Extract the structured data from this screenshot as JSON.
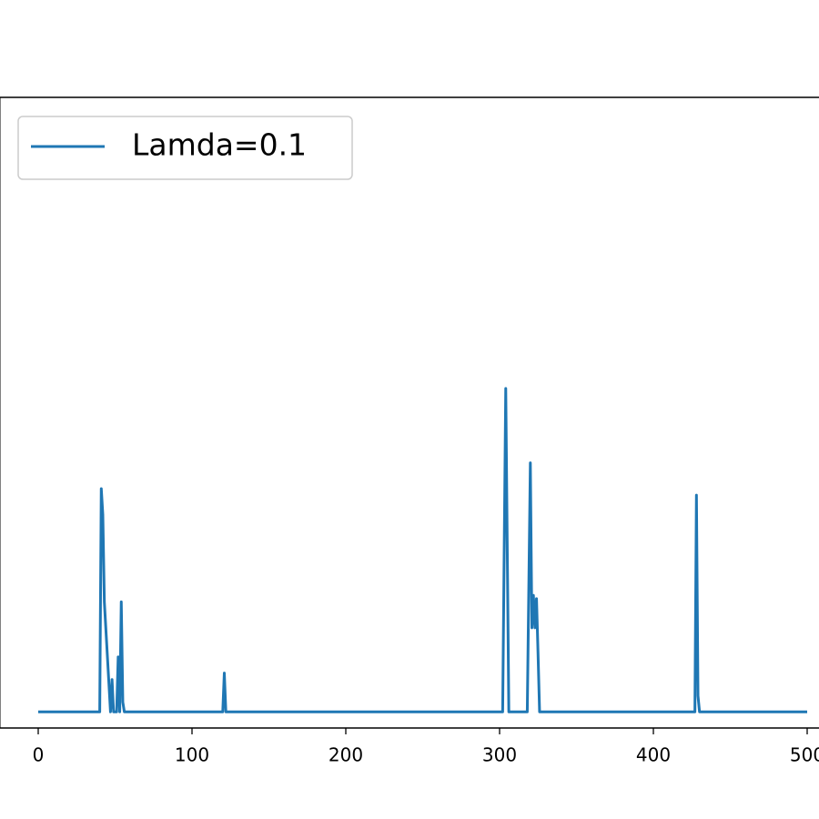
{
  "chart_data": {
    "type": "line",
    "xlim": [
      -25,
      525
    ],
    "xticks": [
      0,
      100,
      200,
      300,
      400,
      500
    ],
    "ylim": [
      -0.05,
      1.9
    ],
    "legend": "upper left",
    "series": [
      {
        "name": "Lamda=0.1",
        "color": "#1f77b4",
        "x": [
          0,
          40,
          41,
          42,
          43,
          47,
          48,
          49,
          51,
          52,
          53,
          54,
          55,
          56,
          120,
          121,
          122,
          302,
          304,
          306,
          318,
          320,
          321,
          322,
          323,
          324,
          325,
          326,
          427,
          428,
          429,
          430,
          500
        ],
        "values": [
          0,
          0,
          0.69,
          0.61,
          0.34,
          0,
          0.1,
          0,
          0,
          0.17,
          0,
          0.34,
          0.03,
          0,
          0,
          0.12,
          0,
          0,
          1.0,
          0,
          0,
          0.77,
          0.26,
          0.36,
          0.26,
          0.35,
          0.18,
          0,
          0,
          0.67,
          0.05,
          0,
          0
        ]
      }
    ]
  }
}
